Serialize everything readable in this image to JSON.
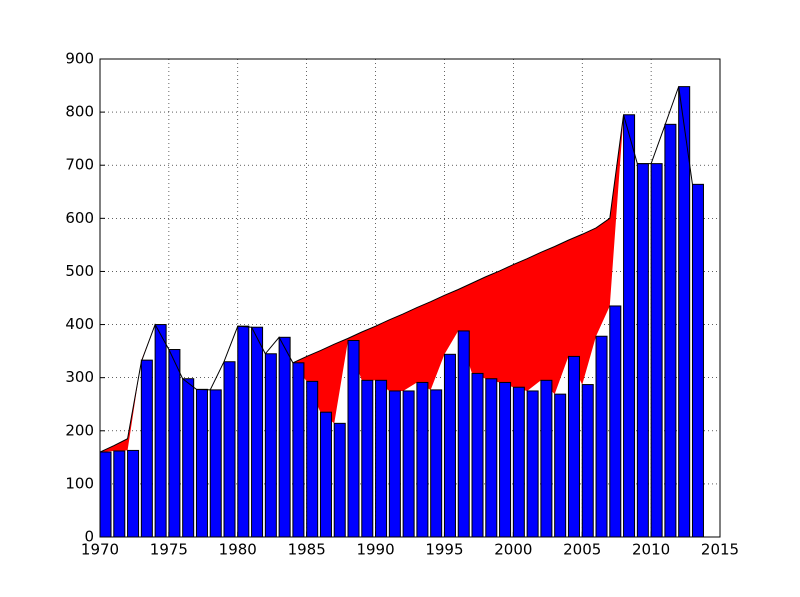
{
  "chart_data": {
    "type": "bar",
    "x": [
      1970,
      1971,
      1972,
      1973,
      1974,
      1975,
      1976,
      1977,
      1978,
      1979,
      1980,
      1981,
      1982,
      1983,
      1984,
      1985,
      1986,
      1987,
      1988,
      1989,
      1990,
      1991,
      1992,
      1993,
      1994,
      1995,
      1996,
      1997,
      1998,
      1999,
      2000,
      2001,
      2002,
      2003,
      2004,
      2005,
      2006,
      2007,
      2008,
      2009,
      2010,
      2011,
      2012,
      2013
    ],
    "series": [
      {
        "type": "bar",
        "color": "#0000ff",
        "values": [
          160,
          162,
          163,
          333,
          400,
          353,
          298,
          278,
          277,
          330,
          397,
          395,
          345,
          376,
          328,
          293,
          235,
          214,
          370,
          295,
          295,
          275,
          275,
          291,
          277,
          344,
          388,
          308,
          298,
          291,
          282,
          275,
          295,
          269,
          340,
          287,
          378,
          435,
          795,
          703,
          703,
          777,
          848,
          664
        ]
      },
      {
        "type": "line",
        "color": "#000000",
        "fill_color": "#ff0000",
        "values": [
          160,
          172,
          185,
          330,
          400,
          353,
          298,
          278,
          277,
          330,
          397,
          395,
          345,
          376,
          328,
          340,
          351,
          363,
          374,
          386,
          397,
          409,
          420,
          432,
          443,
          455,
          466,
          478,
          490,
          501,
          513,
          524,
          536,
          547,
          559,
          570,
          582,
          600,
          795,
          703,
          703,
          775,
          848,
          664
        ]
      }
    ],
    "xlim": [
      1970,
      2015
    ],
    "xticks": [
      1970,
      1975,
      1980,
      1985,
      1990,
      1995,
      2000,
      2005,
      2010,
      2015
    ],
    "ylim": [
      0,
      900
    ],
    "yticks": [
      0,
      100,
      200,
      300,
      400,
      500,
      600,
      700,
      800,
      900
    ],
    "grid": true
  }
}
